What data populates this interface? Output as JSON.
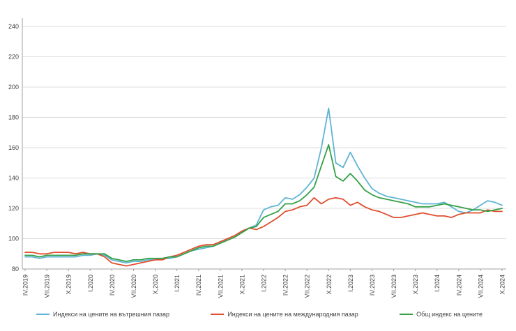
{
  "chart_data": {
    "type": "line",
    "title": "",
    "xlabel": "",
    "ylabel": "",
    "ylim": [
      80,
      240
    ],
    "ytick_step": 20,
    "grid": "horizontal-light-gray",
    "legend_position": "bottom",
    "x_unit": "month",
    "points_per_label": 3,
    "x_tick_labels": [
      "IV.2019",
      "VII.2019",
      "X.2019",
      "I.2020",
      "IV.2020",
      "VII.2020",
      "X.2020",
      "I.2021",
      "IV.2021",
      "VII.2021",
      "X.2021",
      "I.2022",
      "IV.2022",
      "VII.2022",
      "X.2022",
      "I.2023",
      "IV.2023",
      "VII.2023",
      "X.2023",
      "I.2024",
      "IV.2024",
      "VII.2024",
      "X.2024"
    ],
    "axis_color": "#a0a0a0",
    "grid_color": "#dcdcdc",
    "tick_text_color": "#3f3f3f",
    "series": [
      {
        "id": "domestic",
        "name": "Индекси на цените на вътрешния пазар",
        "color": "#5fb4d4",
        "values": [
          88,
          88,
          87,
          88,
          88,
          88,
          88,
          88,
          89,
          89,
          90,
          89,
          86,
          85,
          84,
          85,
          85,
          86,
          86,
          87,
          87,
          88,
          90,
          92,
          93,
          94,
          95,
          97,
          99,
          101,
          104,
          107,
          109,
          119,
          121,
          122,
          127,
          126,
          129,
          134,
          140,
          160,
          186,
          150,
          147,
          157,
          148,
          140,
          133,
          130,
          128,
          127,
          126,
          125,
          124,
          123,
          123,
          123,
          124,
          121,
          118,
          117,
          119,
          122,
          125,
          124,
          122
        ]
      },
      {
        "id": "international",
        "name": "Индекси на цените на международния пазар",
        "color": "#e04e2e",
        "values": [
          91,
          91,
          90,
          90,
          91,
          91,
          91,
          90,
          91,
          90,
          90,
          88,
          84,
          83,
          82,
          83,
          84,
          85,
          86,
          86,
          88,
          89,
          91,
          93,
          95,
          96,
          96,
          98,
          100,
          102,
          105,
          107,
          106,
          108,
          111,
          114,
          118,
          119,
          121,
          122,
          127,
          123,
          126,
          127,
          126,
          122,
          124,
          121,
          119,
          118,
          116,
          114,
          114,
          115,
          116,
          117,
          116,
          115,
          115,
          114,
          116,
          117,
          117,
          117,
          119,
          118,
          118
        ]
      },
      {
        "id": "overall",
        "name": "Общ индекс на цените",
        "color": "#34a047",
        "values": [
          89,
          89,
          88,
          89,
          89,
          89,
          89,
          89,
          90,
          90,
          90,
          90,
          87,
          86,
          85,
          86,
          86,
          87,
          87,
          87,
          88,
          88,
          90,
          92,
          94,
          95,
          95,
          97,
          99,
          101,
          104,
          107,
          108,
          114,
          116,
          118,
          123,
          123,
          125,
          129,
          134,
          148,
          162,
          141,
          138,
          143,
          138,
          132,
          129,
          127,
          126,
          125,
          124,
          123,
          121,
          121,
          121,
          122,
          123,
          122,
          121,
          120,
          119,
          119,
          118,
          119,
          120
        ]
      }
    ]
  }
}
